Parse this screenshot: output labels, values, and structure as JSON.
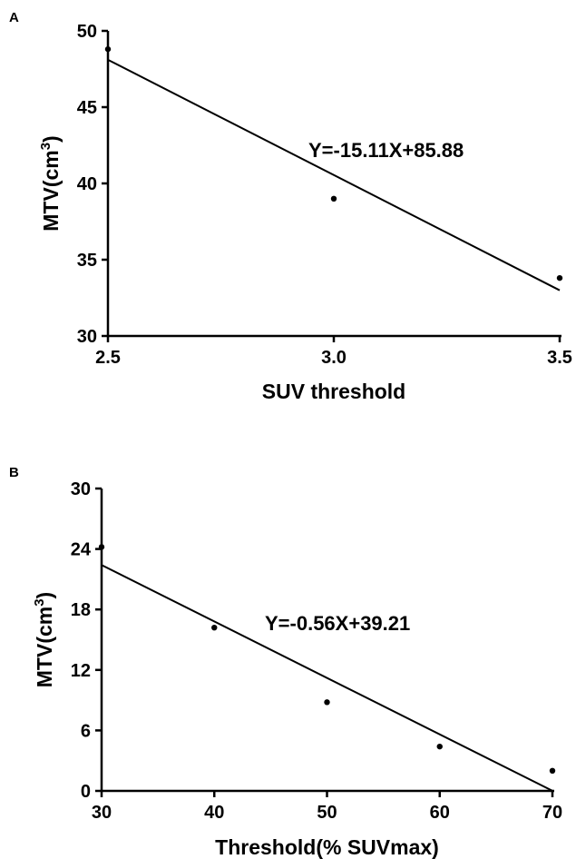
{
  "chart_data": [
    {
      "panel": "A",
      "type": "scatter",
      "xlabel": "SUV threshold",
      "ylabel_base": "MTV(cm",
      "ylabel_sup": "3",
      "ylabel_close": ")",
      "xlim": [
        2.5,
        3.5
      ],
      "ylim": [
        30,
        50
      ],
      "xticks": [
        "2.5",
        "3.0",
        "3.5"
      ],
      "yticks": [
        "30",
        "35",
        "40",
        "45",
        "50"
      ],
      "x": [
        2.5,
        3.0,
        3.5
      ],
      "y": [
        48.8,
        39.0,
        33.8
      ],
      "fit": {
        "slope": -15.11,
        "intercept": 85.88
      },
      "equation": "Y=-15.11X+85.88",
      "grid": false
    },
    {
      "panel": "B",
      "type": "scatter",
      "xlabel": "Threshold(% SUVmax)",
      "ylabel_base": "MTV(cm",
      "ylabel_sup": "3",
      "ylabel_close": ")",
      "xlim": [
        30,
        70
      ],
      "ylim": [
        0,
        30
      ],
      "xticks": [
        "30",
        "40",
        "50",
        "60",
        "70"
      ],
      "yticks": [
        "0",
        "6",
        "12",
        "18",
        "24",
        "30"
      ],
      "x": [
        30,
        40,
        50,
        60,
        70
      ],
      "y": [
        24.2,
        16.2,
        8.8,
        4.4,
        2.0
      ],
      "fit": {
        "slope": -0.56,
        "intercept": 39.21
      },
      "equation": "Y=-0.56X+39.21",
      "grid": false
    }
  ]
}
